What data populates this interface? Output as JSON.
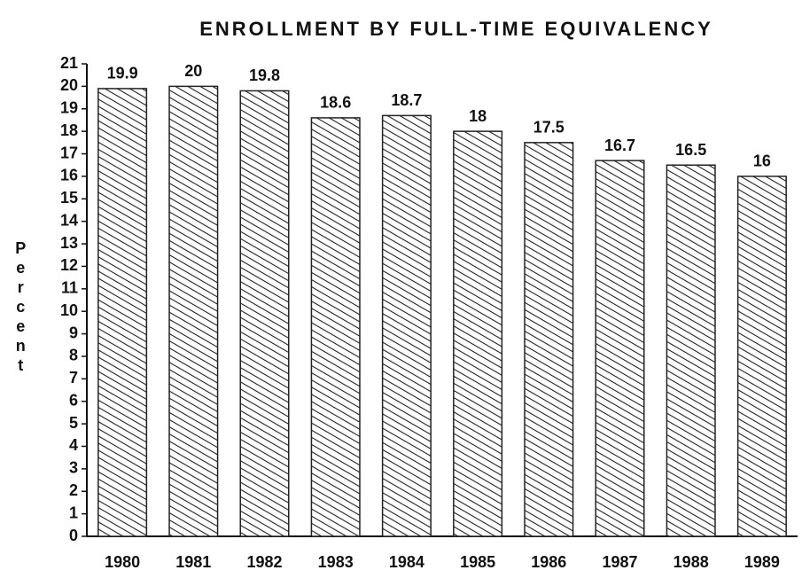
{
  "chart_data": {
    "type": "bar",
    "title": "ENROLLMENT BY FULL-TIME EQUIVALENCY",
    "y_label": "Percent",
    "categories": [
      "1980",
      "1981",
      "1982",
      "1983",
      "1984",
      "1985",
      "1986",
      "1987",
      "1988",
      "1989"
    ],
    "values": [
      19.9,
      20,
      19.8,
      18.6,
      18.7,
      18,
      17.5,
      16.7,
      16.5,
      16
    ],
    "color": "#222222",
    "ylim": [
      0,
      21
    ],
    "yticks": [
      0,
      1,
      2,
      3,
      4,
      5,
      6,
      7,
      8,
      9,
      10,
      11,
      12,
      13,
      14,
      15,
      16,
      17,
      18,
      19,
      20,
      21
    ]
  }
}
